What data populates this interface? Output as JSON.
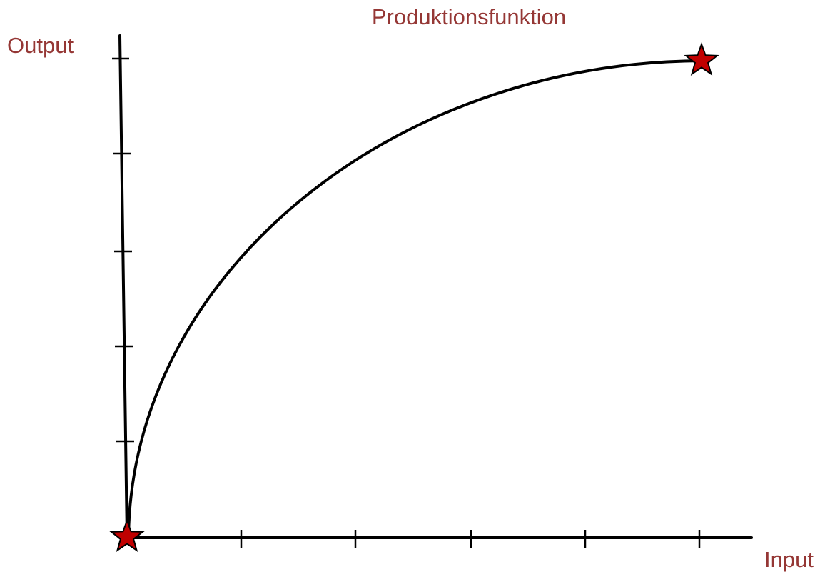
{
  "title": "Produktionsfunktion",
  "axes": {
    "y_label": "Output",
    "x_label": "Input"
  }
}
